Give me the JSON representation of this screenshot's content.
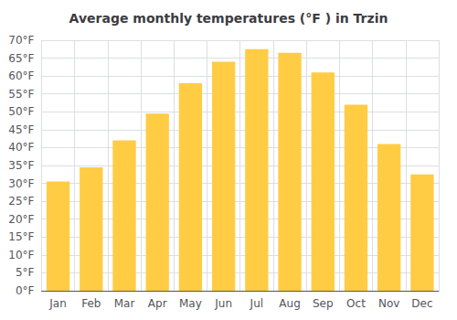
{
  "chart_data": {
    "type": "bar",
    "title": "Average monthly temperatures (°F ) in Trzin",
    "categories": [
      "Jan",
      "Feb",
      "Mar",
      "Apr",
      "May",
      "Jun",
      "Jul",
      "Aug",
      "Sep",
      "Oct",
      "Nov",
      "Dec"
    ],
    "values": [
      30.5,
      34.5,
      42.0,
      49.5,
      58.0,
      64.0,
      67.5,
      66.5,
      61.0,
      52.0,
      41.0,
      32.5
    ],
    "color": "#FFCC44",
    "ylim": [
      0,
      70
    ],
    "yticks": [
      {
        "value": 0,
        "label": "0°F"
      },
      {
        "value": 5,
        "label": "5°F"
      },
      {
        "value": 10,
        "label": "10°F"
      },
      {
        "value": 15,
        "label": "15°F"
      },
      {
        "value": 20,
        "label": "20°F"
      },
      {
        "value": 25,
        "label": "25°F"
      },
      {
        "value": 30,
        "label": "30°F"
      },
      {
        "value": 35,
        "label": "35°F"
      },
      {
        "value": 40,
        "label": "40°F"
      },
      {
        "value": 45,
        "label": "45°F"
      },
      {
        "value": 50,
        "label": "50°F"
      },
      {
        "value": 55,
        "label": "55°F"
      },
      {
        "value": 60,
        "label": "60°F"
      },
      {
        "value": 65,
        "label": "65°F"
      },
      {
        "value": 70,
        "label": "70°F"
      }
    ],
    "grid": true
  }
}
